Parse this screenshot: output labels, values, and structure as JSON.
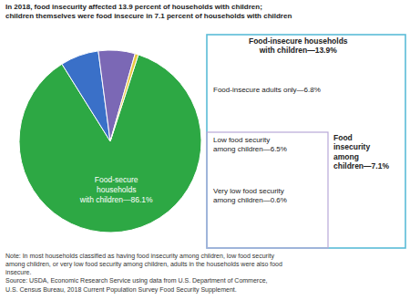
{
  "chart_data": {
    "type": "pie",
    "title": "In 2018, food insecurity affected 13.9 percent of households with children;",
    "subtitle": "children themselves were food insecure in 7.1 percent of households with children",
    "categories": [
      "Food-secure\nhouseholds\nwith children—86.1%",
      "Food-insecure adults only—6.8%",
      "Low food security\namong children—6.5%",
      "Very low food security\namong children—0.6%"
    ],
    "values": [
      86.1,
      6.8,
      6.5,
      0.6
    ],
    "colors": [
      "#2da844",
      "#3a70c8",
      "#7b68b5",
      "#e8c840"
    ],
    "annotations": [
      {
        "text": "Food-insecure households\nwith children—13.9%",
        "color": "#5bbcd8"
      },
      {
        "text": "Food\ninsecurity\namong\nchildren—7.1%",
        "color": "#b8a8d8"
      }
    ],
    "notes": [
      "Note: In most households classified as having food insecurity among children, low food security",
      "among children, or very low food security among children, adults in the households were also food",
      "insecure.",
      "Source: USDA, Economic Research Service using data from U.S. Department of Commerce,",
      "U.S. Census Bureau, 2018 Current Population Survey Food Security Supplement."
    ]
  }
}
